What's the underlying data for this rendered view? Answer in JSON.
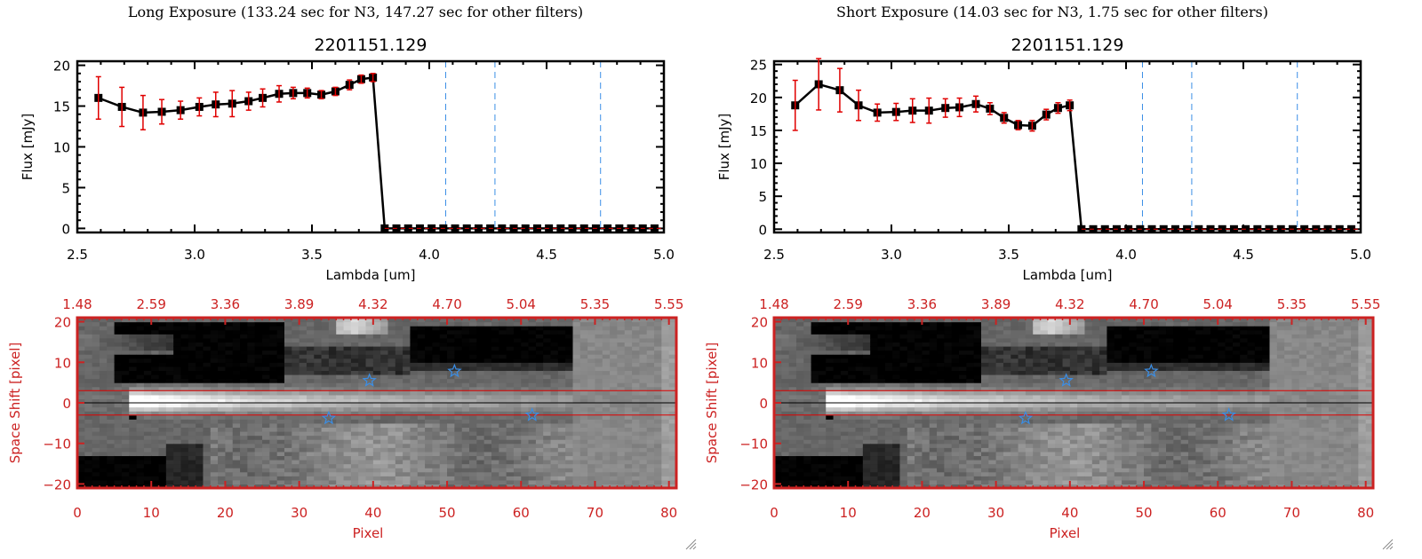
{
  "colors": {
    "axis": "#000000",
    "errorbar": "#e00000",
    "filter_line": "#3a8ee6",
    "image_axis": "#cc2222",
    "aperture_line": "#e00000",
    "center_line": "#000000",
    "star": "#3a8ee6",
    "zero_line": "#e00000"
  },
  "chart_data": [
    {
      "type": "line",
      "panel": "left",
      "exposure_title": "Long Exposure (133.24 sec for N3, 147.27 sec for other filters)",
      "title": "2201151.129",
      "xlabel": "Lambda [um]",
      "ylabel": "Flux [mJy]",
      "xlim": [
        2.5,
        5.0
      ],
      "ylim": [
        -0.5,
        20.5
      ],
      "xticks": [
        2.5,
        3.0,
        3.5,
        4.0,
        4.5,
        5.0
      ],
      "xtick_labels": [
        "2.5",
        "3.0",
        "3.5",
        "4.0",
        "4.5",
        "5.0"
      ],
      "yticks": [
        0,
        5,
        10,
        15,
        20
      ],
      "ytick_labels": [
        "0",
        "5",
        "10",
        "15",
        "20"
      ],
      "filter_lines": [
        4.07,
        4.28,
        4.73
      ],
      "zero_line": 0,
      "series": [
        {
          "name": "flux",
          "x": [
            2.59,
            2.69,
            2.78,
            2.86,
            2.94,
            3.02,
            3.09,
            3.16,
            3.23,
            3.29,
            3.36,
            3.42,
            3.48,
            3.54,
            3.6,
            3.66,
            3.71,
            3.76,
            3.81,
            3.86,
            3.91,
            3.96,
            4.01,
            4.06,
            4.11,
            4.16,
            4.21,
            4.26,
            4.31,
            4.36,
            4.41,
            4.46,
            4.51,
            4.56,
            4.61,
            4.66,
            4.71,
            4.76,
            4.81,
            4.86,
            4.91,
            4.96
          ],
          "y": [
            16.0,
            14.9,
            14.2,
            14.3,
            14.5,
            14.9,
            15.2,
            15.3,
            15.6,
            16.0,
            16.5,
            16.6,
            16.6,
            16.4,
            16.8,
            17.6,
            18.3,
            18.5,
            0,
            0,
            0,
            0,
            0,
            0,
            0,
            0,
            0,
            0,
            0,
            0,
            0,
            0,
            0,
            0,
            0,
            0,
            0,
            0,
            0,
            0,
            0,
            0
          ],
          "err": [
            2.6,
            2.4,
            2.1,
            1.5,
            1.1,
            1.1,
            1.5,
            1.6,
            1.1,
            1.1,
            1.0,
            0.7,
            0.6,
            0.5,
            0.5,
            0.6,
            0.5,
            0.5,
            0,
            0,
            0,
            0,
            0,
            0,
            0,
            0,
            0,
            0,
            0,
            0,
            0,
            0,
            0,
            0,
            0,
            0,
            0,
            0,
            0,
            0,
            0,
            0
          ]
        }
      ]
    },
    {
      "type": "line",
      "panel": "right",
      "exposure_title": "Short Exposure (14.03 sec for N3, 1.75 sec for other filters)",
      "title": "2201151.129",
      "xlabel": "Lambda [um]",
      "ylabel": "Flux [mJy]",
      "xlim": [
        2.5,
        5.0
      ],
      "ylim": [
        -0.5,
        25.5
      ],
      "xticks": [
        2.5,
        3.0,
        3.5,
        4.0,
        4.5,
        5.0
      ],
      "xtick_labels": [
        "2.5",
        "3.0",
        "3.5",
        "4.0",
        "4.5",
        "5.0"
      ],
      "yticks": [
        0,
        5,
        10,
        15,
        20,
        25
      ],
      "ytick_labels": [
        "0",
        "5",
        "10",
        "15",
        "20",
        "25"
      ],
      "filter_lines": [
        4.07,
        4.28,
        4.73
      ],
      "zero_line": 0,
      "series": [
        {
          "name": "flux",
          "x": [
            2.59,
            2.69,
            2.78,
            2.86,
            2.94,
            3.02,
            3.09,
            3.16,
            3.23,
            3.29,
            3.36,
            3.42,
            3.48,
            3.54,
            3.6,
            3.66,
            3.71,
            3.76,
            3.81,
            3.86,
            3.91,
            3.96,
            4.01,
            4.06,
            4.11,
            4.16,
            4.21,
            4.26,
            4.31,
            4.36,
            4.41,
            4.46,
            4.51,
            4.56,
            4.61,
            4.66,
            4.71,
            4.76,
            4.81,
            4.86,
            4.91,
            4.96
          ],
          "y": [
            18.8,
            22.0,
            21.1,
            18.8,
            17.7,
            17.8,
            18.0,
            18.0,
            18.4,
            18.5,
            19.0,
            18.3,
            16.9,
            15.8,
            15.7,
            17.4,
            18.4,
            18.8,
            0,
            0,
            0,
            0,
            0,
            0,
            0,
            0,
            0,
            0,
            0,
            0,
            0,
            0,
            0,
            0,
            0,
            0,
            0,
            0,
            0,
            0,
            0,
            0
          ],
          "err": [
            3.8,
            3.9,
            3.3,
            2.3,
            1.3,
            1.3,
            1.8,
            1.9,
            1.4,
            1.4,
            1.2,
            0.9,
            0.8,
            0.7,
            0.8,
            0.8,
            0.8,
            0.8,
            0,
            0,
            0,
            0,
            0,
            0,
            0,
            0,
            0,
            0,
            0,
            0,
            0,
            0,
            0,
            0,
            0,
            0,
            0,
            0,
            0,
            0,
            0,
            0
          ]
        }
      ]
    },
    {
      "type": "heatmap",
      "panel": "left",
      "xlabel": "Pixel",
      "ylabel": "Space Shift [pixel]",
      "xlim": [
        0,
        81
      ],
      "ylim": [
        -21,
        21
      ],
      "xticks": [
        0,
        10,
        20,
        30,
        40,
        50,
        60,
        70,
        80
      ],
      "xtick_labels": [
        "0",
        "10",
        "20",
        "30",
        "40",
        "50",
        "60",
        "70",
        "80"
      ],
      "yticks": [
        -20,
        -10,
        0,
        10,
        20
      ],
      "ytick_labels": [
        "−20",
        "−10",
        "0",
        "10",
        "20"
      ],
      "top_tick_labels": [
        "1.48",
        "2.59",
        "3.36",
        "3.89",
        "4.32",
        "4.70",
        "5.04",
        "5.35",
        "5.55"
      ],
      "aperture_lines": [
        3,
        -3
      ],
      "center_line": 0,
      "stars": [
        {
          "x": 39.5,
          "y": 5.5
        },
        {
          "x": 51,
          "y": 7.8
        },
        {
          "x": 34,
          "y": -3.8
        },
        {
          "x": 61.5,
          "y": -3.0
        }
      ]
    },
    {
      "type": "heatmap",
      "panel": "right",
      "xlabel": "Pixel",
      "ylabel": "Space Shift [pixel]",
      "xlim": [
        0,
        81
      ],
      "ylim": [
        -21,
        21
      ],
      "xticks": [
        0,
        10,
        20,
        30,
        40,
        50,
        60,
        70,
        80
      ],
      "xtick_labels": [
        "0",
        "10",
        "20",
        "30",
        "40",
        "50",
        "60",
        "70",
        "80"
      ],
      "yticks": [
        -20,
        -10,
        0,
        10,
        20
      ],
      "ytick_labels": [
        "−20",
        "−10",
        "0",
        "10",
        "20"
      ],
      "top_tick_labels": [
        "1.48",
        "2.59",
        "3.36",
        "3.89",
        "4.32",
        "4.70",
        "5.04",
        "5.35",
        "5.55"
      ],
      "aperture_lines": [
        3,
        -3
      ],
      "center_line": 0,
      "stars": [
        {
          "x": 39.5,
          "y": 5.5
        },
        {
          "x": 51,
          "y": 7.8
        },
        {
          "x": 34,
          "y": -3.8
        },
        {
          "x": 61.5,
          "y": -3.0
        }
      ]
    }
  ]
}
